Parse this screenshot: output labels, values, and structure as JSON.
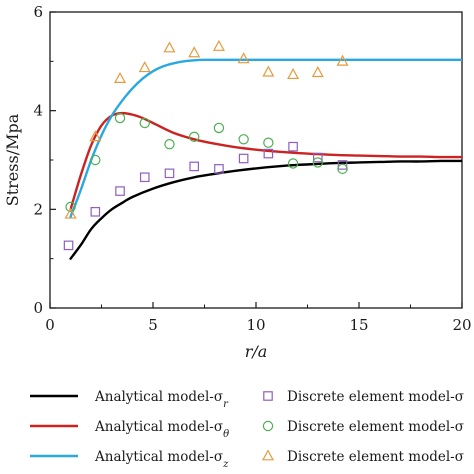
{
  "chart_data": {
    "type": "line",
    "title": "",
    "xlabel": "r/a",
    "ylabel": "Stress/Mpa",
    "xlim": [
      0,
      20
    ],
    "ylim": [
      0,
      6
    ],
    "xticks": [
      0,
      5,
      10,
      15,
      20
    ],
    "yticks": [
      0,
      2,
      4,
      6
    ],
    "grid": false,
    "legend_position": "bottom",
    "series": [
      {
        "kind": "line",
        "name": "Analytical model-σ",
        "subscript": "r",
        "color": "#000000",
        "x": [
          1,
          1.5,
          2,
          2.5,
          3,
          3.5,
          4,
          5,
          6,
          7,
          8,
          9,
          10,
          11,
          12,
          13,
          14,
          15,
          16,
          17,
          18,
          19,
          20
        ],
        "y": [
          1.0,
          1.28,
          1.6,
          1.82,
          2.0,
          2.13,
          2.25,
          2.42,
          2.55,
          2.65,
          2.72,
          2.78,
          2.83,
          2.87,
          2.9,
          2.92,
          2.94,
          2.95,
          2.96,
          2.97,
          2.97,
          2.98,
          2.98
        ]
      },
      {
        "kind": "line",
        "name": "Analytical model-σ",
        "subscript": "θ",
        "color": "#cc2222",
        "x": [
          1,
          1.5,
          2,
          2.5,
          3,
          3.5,
          4,
          4.5,
          5,
          6,
          7,
          8,
          9,
          10,
          11,
          12,
          13,
          14,
          15,
          16,
          17,
          18,
          19,
          20
        ],
        "y": [
          2.0,
          2.7,
          3.3,
          3.7,
          3.9,
          3.95,
          3.92,
          3.85,
          3.75,
          3.55,
          3.42,
          3.33,
          3.26,
          3.21,
          3.17,
          3.14,
          3.12,
          3.1,
          3.09,
          3.08,
          3.07,
          3.07,
          3.06,
          3.06
        ]
      },
      {
        "kind": "line",
        "name": "Analytical model-σ",
        "subscript": "z",
        "color": "#29a9df",
        "x": [
          1,
          1.5,
          2,
          2.5,
          3,
          3.5,
          4,
          4.5,
          5,
          5.5,
          6,
          6.5,
          7,
          7.5,
          8,
          9,
          10,
          12,
          14,
          16,
          18,
          20
        ],
        "y": [
          1.85,
          2.4,
          3.0,
          3.5,
          3.9,
          4.2,
          4.45,
          4.65,
          4.8,
          4.9,
          4.96,
          5.0,
          5.02,
          5.03,
          5.03,
          5.03,
          5.03,
          5.03,
          5.03,
          5.03,
          5.03,
          5.03
        ]
      },
      {
        "kind": "scatter",
        "marker": "square",
        "name": "Discrete element model-σ",
        "color": "#8e5fbf",
        "x": [
          0.9,
          2.2,
          3.4,
          4.6,
          5.8,
          7.0,
          8.2,
          9.4,
          10.6,
          11.8,
          13.0,
          14.2
        ],
        "y": [
          1.27,
          1.95,
          2.37,
          2.65,
          2.73,
          2.87,
          2.82,
          3.03,
          3.13,
          3.27,
          3.05,
          2.9
        ]
      },
      {
        "kind": "scatter",
        "marker": "circle",
        "name": "Discrete element model-σ",
        "color": "#4caf50",
        "x": [
          1.0,
          2.2,
          3.4,
          4.6,
          5.8,
          7.0,
          8.2,
          9.4,
          10.6,
          11.8,
          13.0,
          14.2
        ],
        "y": [
          2.05,
          3.0,
          3.85,
          3.75,
          3.32,
          3.47,
          3.65,
          3.42,
          3.35,
          2.93,
          2.95,
          2.82
        ]
      },
      {
        "kind": "scatter",
        "marker": "triangle",
        "name": "Discrete element model-σ",
        "color": "#e69a3c",
        "x": [
          1.0,
          2.2,
          3.4,
          4.6,
          5.8,
          7.0,
          8.2,
          9.4,
          10.6,
          11.8,
          13.0,
          14.2
        ],
        "y": [
          1.9,
          3.47,
          4.65,
          4.87,
          5.27,
          5.17,
          5.3,
          5.05,
          4.78,
          4.73,
          4.77,
          5.0
        ]
      }
    ]
  }
}
